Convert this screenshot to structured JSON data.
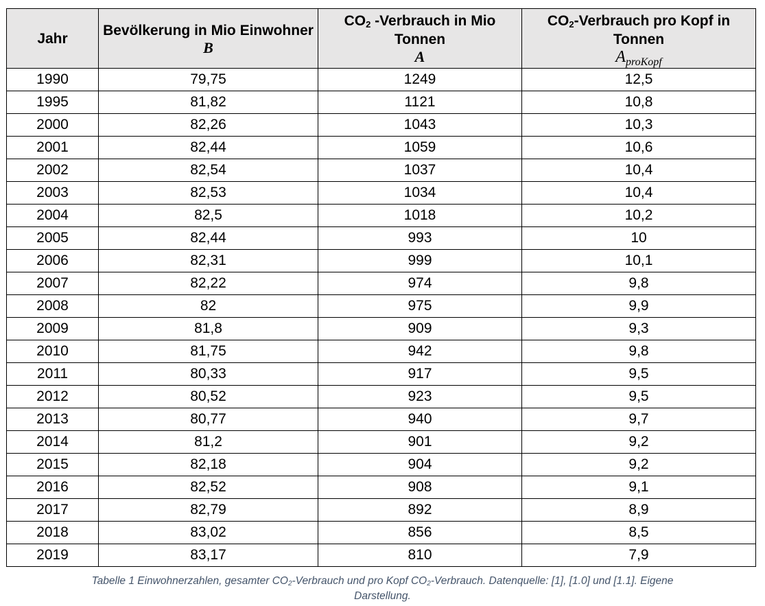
{
  "table": {
    "headers": [
      {
        "pre": "Jahr",
        "sub": "",
        "post": "",
        "symbol": "",
        "symbol_sub": ""
      },
      {
        "pre": "Bevölkerung in Mio Einwohner",
        "sub": "",
        "post": "",
        "symbol": "B",
        "symbol_sub": ""
      },
      {
        "pre": "CO",
        "sub": "2",
        "post": " -Verbrauch in Mio Tonnen",
        "symbol": "A",
        "symbol_sub": ""
      },
      {
        "pre": "CO",
        "sub": "2",
        "post": "-Verbrauch pro Kopf in Tonnen",
        "symbol": "A",
        "symbol_sub": "proKopf"
      }
    ],
    "rows": [
      [
        "1990",
        "79,75",
        "1249",
        "12,5"
      ],
      [
        "1995",
        "81,82",
        "1121",
        "10,8"
      ],
      [
        "2000",
        "82,26",
        "1043",
        "10,3"
      ],
      [
        "2001",
        "82,44",
        "1059",
        "10,6"
      ],
      [
        "2002",
        "82,54",
        "1037",
        "10,4"
      ],
      [
        "2003",
        "82,53",
        "1034",
        "10,4"
      ],
      [
        "2004",
        "82,5",
        "1018",
        "10,2"
      ],
      [
        "2005",
        "82,44",
        "993",
        "10"
      ],
      [
        "2006",
        "82,31",
        "999",
        "10,1"
      ],
      [
        "2007",
        "82,22",
        "974",
        "9,8"
      ],
      [
        "2008",
        "82",
        "975",
        "9,9"
      ],
      [
        "2009",
        "81,8",
        "909",
        "9,3"
      ],
      [
        "2010",
        "81,75",
        "942",
        "9,8"
      ],
      [
        "2011",
        "80,33",
        "917",
        "9,5"
      ],
      [
        "2012",
        "80,52",
        "923",
        "9,5"
      ],
      [
        "2013",
        "80,77",
        "940",
        "9,7"
      ],
      [
        "2014",
        "81,2",
        "901",
        "9,2"
      ],
      [
        "2015",
        "82,18",
        "904",
        "9,2"
      ],
      [
        "2016",
        "82,52",
        "908",
        "9,1"
      ],
      [
        "2017",
        "82,79",
        "892",
        "8,9"
      ],
      [
        "2018",
        "83,02",
        "856",
        "8,5"
      ],
      [
        "2019",
        "83,17",
        "810",
        "7,9"
      ]
    ]
  },
  "caption": {
    "part1": "Tabelle 1 Einwohnerzahlen, gesamter CO",
    "sub1": "2",
    "part2": "-Verbrauch und pro Kopf CO",
    "sub2": "2",
    "part3": "-Verbrauch. Datenquelle: [1], [1.0] und [1.1]. Eigene Darstellung."
  },
  "colors": {
    "header_bg": "#e7e6e6",
    "caption_text": "#44546a",
    "border": "#000000"
  }
}
